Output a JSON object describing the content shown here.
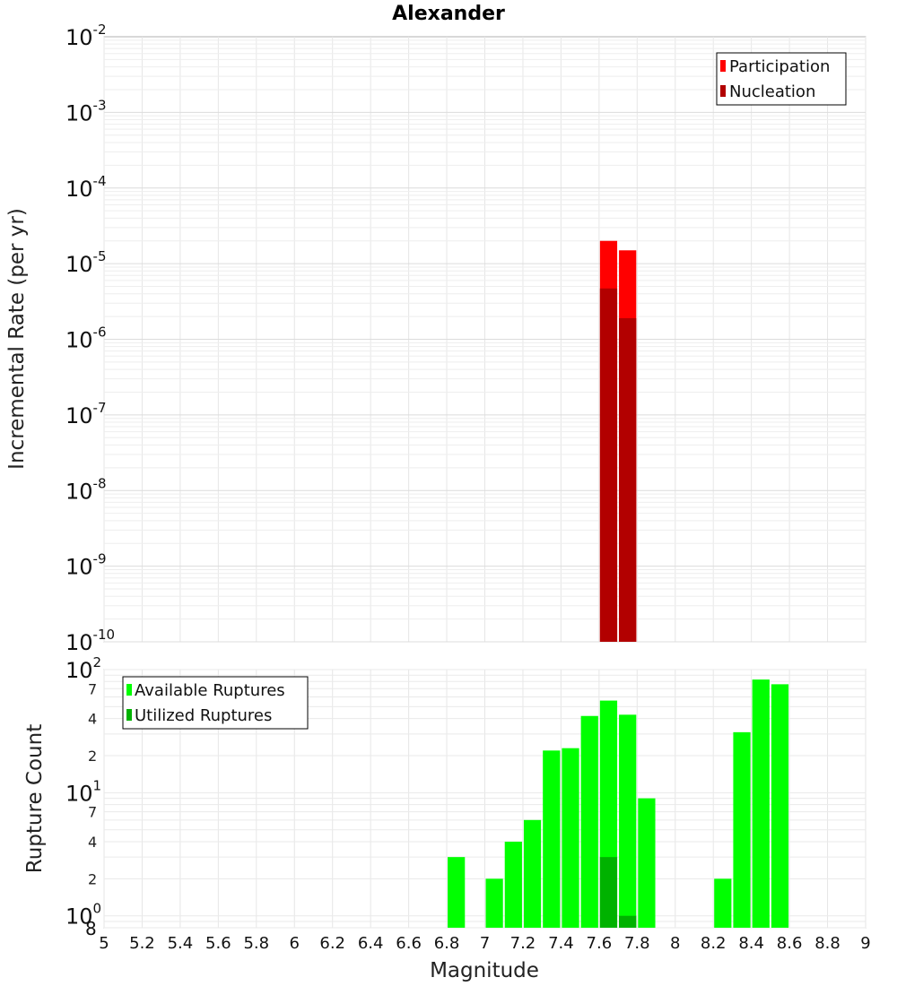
{
  "chart_data": [
    {
      "type": "bar",
      "title": "Alexander",
      "ylabel": "Incremental Rate (per yr)",
      "xlabel": "",
      "xlim": [
        5,
        9
      ],
      "ylim": [
        1e-10,
        0.01
      ],
      "y_scale": "log",
      "grid": true,
      "legend_position": "top-right",
      "bin_width": 0.1,
      "y_ticks": [
        {
          "base": "10",
          "exp": "-10",
          "value": 1e-10
        },
        {
          "base": "10",
          "exp": "-9",
          "value": 1e-09
        },
        {
          "base": "10",
          "exp": "-8",
          "value": 1e-08
        },
        {
          "base": "10",
          "exp": "-7",
          "value": 1e-07
        },
        {
          "base": "10",
          "exp": "-6",
          "value": 1e-06
        },
        {
          "base": "10",
          "exp": "-5",
          "value": 1e-05
        },
        {
          "base": "10",
          "exp": "-4",
          "value": 0.0001
        },
        {
          "base": "10",
          "exp": "-3",
          "value": 0.001
        },
        {
          "base": "10",
          "exp": "-2",
          "value": 0.01
        }
      ],
      "series": [
        {
          "name": "Participation",
          "color": "#ff0000",
          "x": [
            7.65,
            7.75
          ],
          "values": [
            2e-05,
            1.5e-05
          ]
        },
        {
          "name": "Nucleation",
          "color": "#b20000",
          "x": [
            7.65,
            7.75
          ],
          "values": [
            4.7e-06,
            1.9e-06
          ]
        }
      ]
    },
    {
      "type": "bar",
      "title": "",
      "ylabel": "Rupture Count",
      "xlabel": "Magnitude",
      "xlim": [
        5,
        9
      ],
      "ylim": [
        0.8,
        100
      ],
      "y_scale": "log",
      "grid": true,
      "legend_position": "top-left",
      "bin_width": 0.1,
      "x_ticks": [
        "5",
        "5.2",
        "5.4",
        "5.6",
        "5.8",
        "6",
        "6.2",
        "6.4",
        "6.6",
        "6.8",
        "7",
        "7.2",
        "7.4",
        "7.6",
        "7.8",
        "8",
        "8.2",
        "8.4",
        "8.6",
        "8.8",
        "9"
      ],
      "y_major_ticks": [
        {
          "base": "10",
          "exp": "0",
          "value": 1
        },
        {
          "base": "10",
          "exp": "1",
          "value": 10
        },
        {
          "base": "10",
          "exp": "2",
          "value": 100
        }
      ],
      "y_minor_ticks": [
        {
          "label": "8",
          "value": 0.8
        },
        {
          "label": "2",
          "value": 2
        },
        {
          "label": "4",
          "value": 4
        },
        {
          "label": "7",
          "value": 7
        },
        {
          "label": "2",
          "value": 20
        },
        {
          "label": "4",
          "value": 40
        },
        {
          "label": "7",
          "value": 70
        }
      ],
      "series": [
        {
          "name": "Available Ruptures",
          "color": "#00ff00",
          "x": [
            6.85,
            7.05,
            7.15,
            7.25,
            7.35,
            7.45,
            7.55,
            7.65,
            7.75,
            7.85,
            8.25,
            8.35,
            8.45,
            8.55
          ],
          "values": [
            3,
            2,
            4,
            6,
            22,
            23,
            42,
            56,
            43,
            9,
            2,
            31,
            83,
            76
          ]
        },
        {
          "name": "Utilized Ruptures",
          "color": "#00b200",
          "x": [
            7.65,
            7.75
          ],
          "values": [
            3,
            1
          ]
        }
      ]
    }
  ]
}
